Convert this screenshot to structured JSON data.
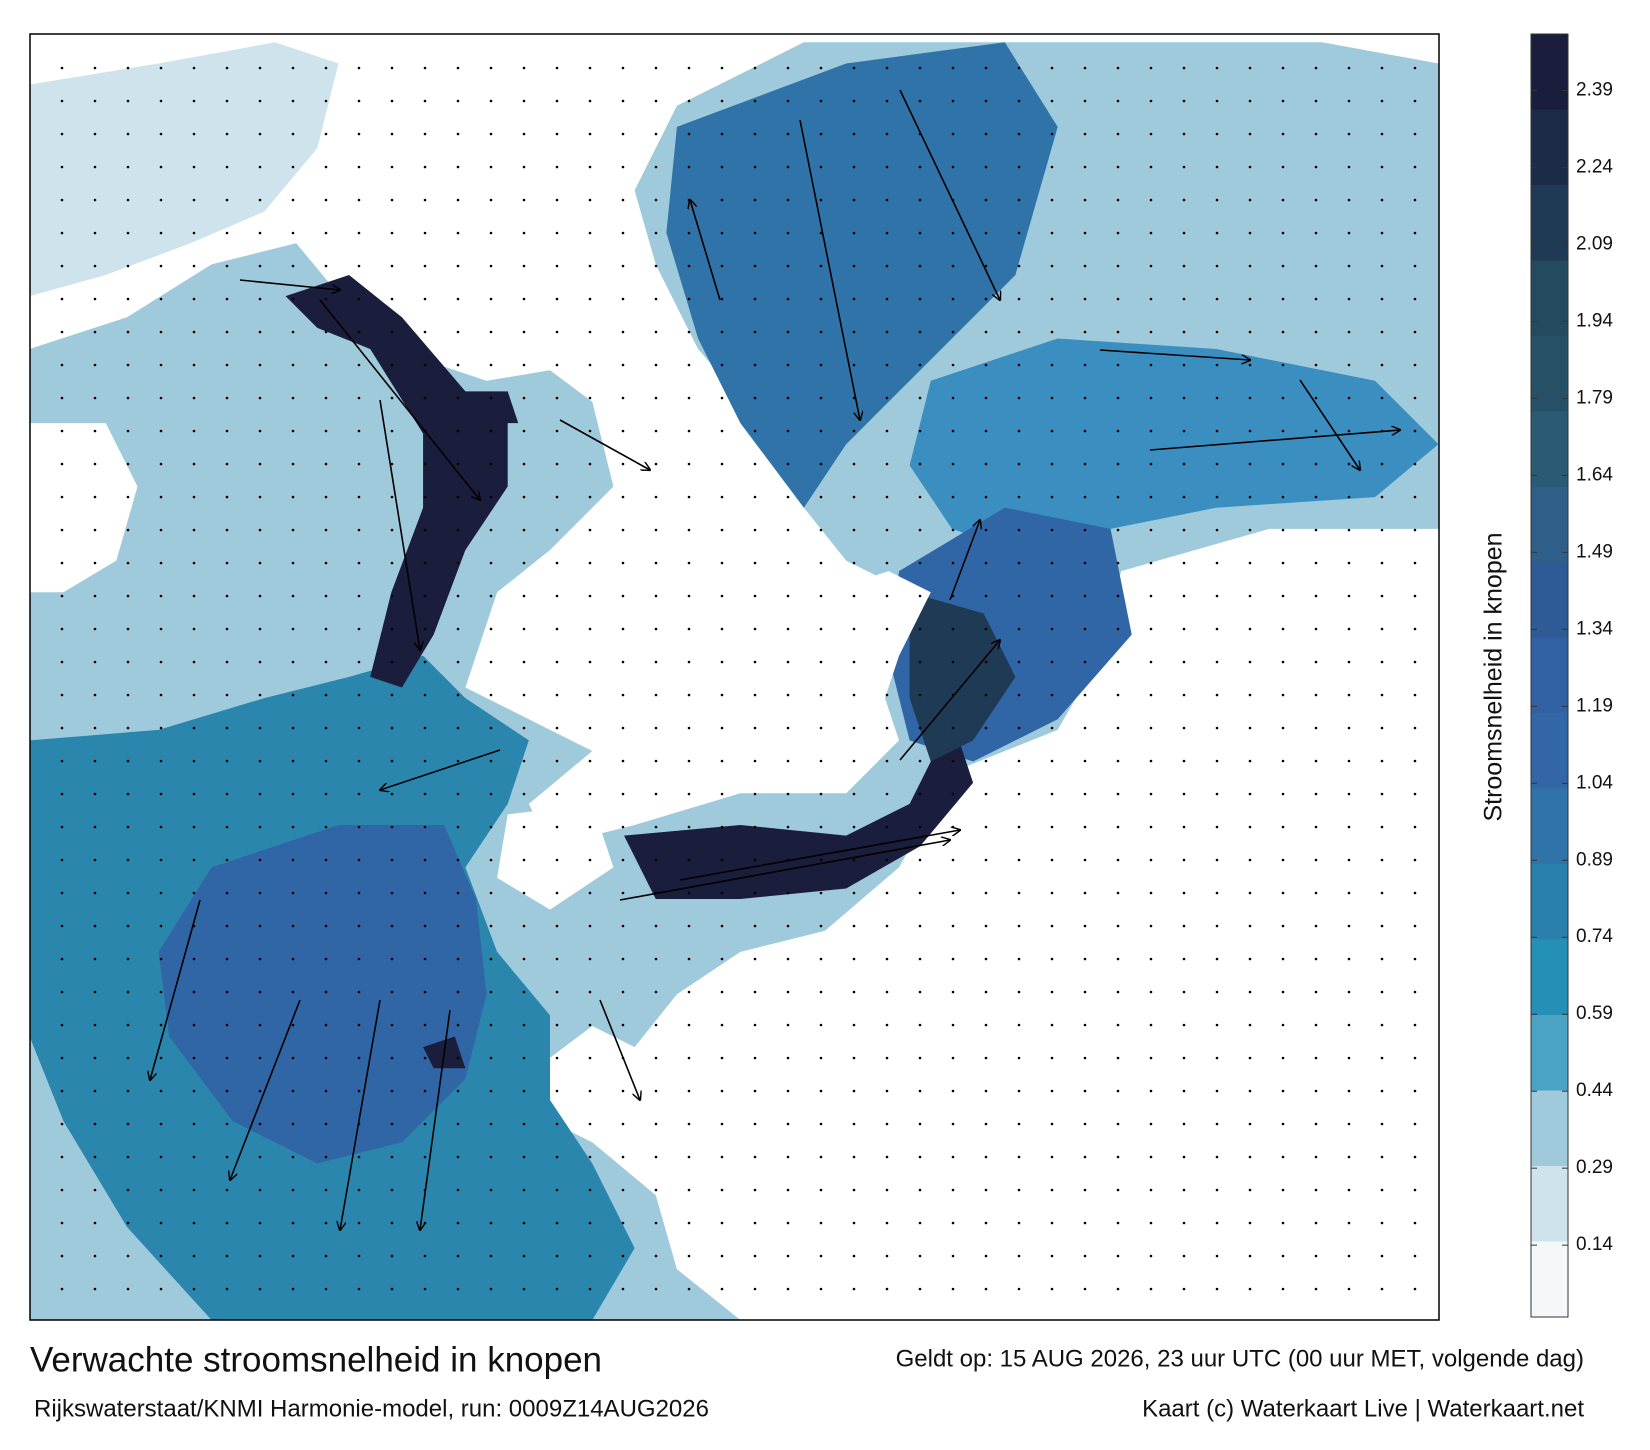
{
  "map": {
    "title": "Verwachte stroomsnelheid in knopen",
    "valid_time": "Geldt op: 15 AUG 2026, 23 uur UTC (00 uur MET, volgende dag)",
    "source": "Rijkswaterstaat/KNMI Harmonie-model, run: 0009Z14AUG2026",
    "credit": "Kaart (c) Waterkaart Live | Waterkaart.net",
    "colorbar": {
      "label": "Stroomsnelheid in knopen",
      "lim": [
        0,
        2.5
      ],
      "ticks": [
        0.14,
        0.29,
        0.44,
        0.59,
        0.74,
        0.89,
        1.04,
        1.19,
        1.34,
        1.49,
        1.64,
        1.79,
        1.94,
        2.09,
        2.24,
        2.39
      ],
      "colors": [
        "#f4f8fa",
        "#cfe3ec",
        "#9fcadb",
        "#4aa3c3",
        "#2590b6",
        "#2a80ad",
        "#2f73a8",
        "#3366a6",
        "#3160a3",
        "#2e5a95",
        "#2e5f88",
        "#2b5b73",
        "#265066",
        "#244a5e",
        "#1f3a55",
        "#1c2c48",
        "#1b1d3c"
      ]
    }
  }
}
